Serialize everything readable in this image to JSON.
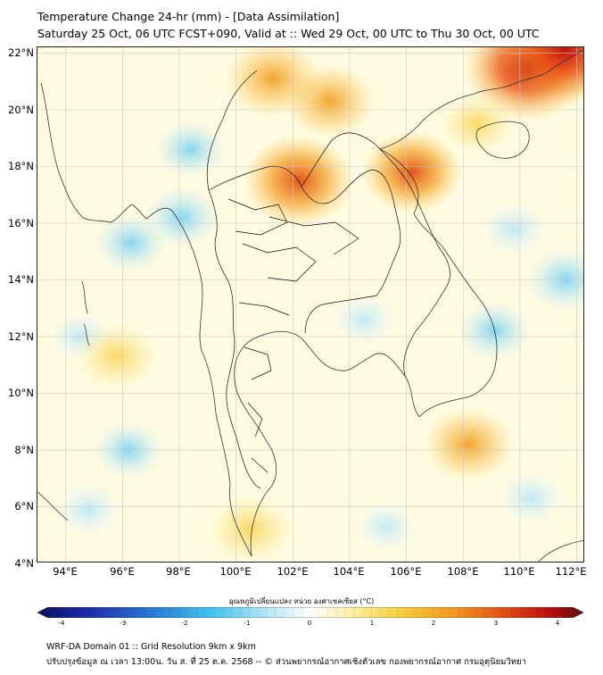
{
  "title_line1": "Temperature Change 24-hr (mm) - [Data Assimilation]",
  "title_line2": "Saturday 25 Oct, 06 UTC FCST+090, Valid at :: Wed 29 Oct, 00 UTC to Thu 30 Oct, 00 UTC",
  "map": {
    "lon_range": [
      93,
      112.3
    ],
    "lat_range": [
      4,
      22.2
    ],
    "lat_ticks": [
      "22°N",
      "20°N",
      "18°N",
      "16°N",
      "14°N",
      "12°N",
      "10°N",
      "8°N",
      "6°N",
      "4°N"
    ],
    "lon_ticks": [
      "94°E",
      "96°E",
      "98°E",
      "100°E",
      "102°E",
      "104°E",
      "106°E",
      "108°E",
      "110°E",
      "112°E"
    ],
    "field_base_color": "#fffbe0",
    "warm_areas": [
      {
        "lon": 101.3,
        "lat": 21.1,
        "level": "1.8"
      },
      {
        "lon": 103.3,
        "lat": 20.3,
        "level": "1.6"
      },
      {
        "lon": 102.2,
        "lat": 17.5,
        "level": "2.4"
      },
      {
        "lon": 110.3,
        "lat": 21.5,
        "level": "3.2"
      },
      {
        "lon": 111.6,
        "lat": 22.1,
        "level": "3.2"
      },
      {
        "lon": 106.2,
        "lat": 17.8,
        "level": "2.0"
      },
      {
        "lon": 108.2,
        "lat": 8.2,
        "level": "1.6"
      },
      {
        "lon": 95.8,
        "lat": 11.3,
        "level": "1.3"
      },
      {
        "lon": 100.5,
        "lat": 5.2,
        "level": "1.4"
      },
      {
        "lon": 108.5,
        "lat": 19.5,
        "level": "1.0"
      }
    ],
    "cool_areas": [
      {
        "lon": 96.3,
        "lat": 15.3,
        "level": "-1.0"
      },
      {
        "lon": 98.1,
        "lat": 16.2,
        "level": "-1.1"
      },
      {
        "lon": 98.4,
        "lat": 18.6,
        "level": "-0.9"
      },
      {
        "lon": 109.1,
        "lat": 12.2,
        "level": "-1.0"
      },
      {
        "lon": 111.6,
        "lat": 14.0,
        "level": "-1.2"
      },
      {
        "lon": 109.8,
        "lat": 15.8,
        "level": "-0.8"
      },
      {
        "lon": 104.5,
        "lat": 12.6,
        "level": "-0.6"
      },
      {
        "lon": 96.2,
        "lat": 8.0,
        "level": "-0.9"
      },
      {
        "lon": 94.8,
        "lat": 5.9,
        "level": "-0.8"
      },
      {
        "lon": 110.4,
        "lat": 6.3,
        "level": "-0.8"
      },
      {
        "lon": 105.3,
        "lat": 5.3,
        "level": "-0.6"
      },
      {
        "lon": 94.5,
        "lat": 12.0,
        "level": "-0.5"
      }
    ]
  },
  "colorbar": {
    "title": "อุณหภูมิเปลี่ยนแปลง หน่วย องศาเซลเซียส (°C)",
    "min": -4,
    "max": 4,
    "ticks": [
      "-4",
      "-3",
      "-2",
      "-1",
      "0",
      "1",
      "2",
      "3",
      "4"
    ]
  },
  "footer_line1": "WRF-DA Domain 01 :: Grid Resolution 9km x 9km",
  "footer_line2": "ปรับปรุงข้อมูล ณ เวลา 13:00น. วัน ส. ที่ 25 ต.ค. 2568 -- © ส่วนพยากรณ์อากาศเชิงตัวเลข กองพยากรณ์อากาศ กรมอุตุนิยมวิทยา"
}
